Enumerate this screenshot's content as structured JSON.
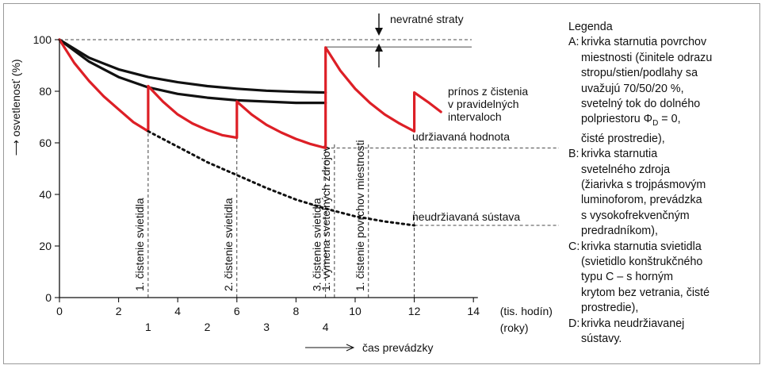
{
  "chart_data": {
    "type": "line",
    "ylabel": "osvetlenosť (%)",
    "xlabel": "čas prevádzky",
    "x_unit_hours": "(tis. hodín)",
    "x_unit_years": "(roky)",
    "ylim": [
      0,
      100
    ],
    "xlim": [
      0,
      14
    ],
    "y_ticks": [
      "0",
      "20",
      "40",
      "60",
      "80",
      "100"
    ],
    "x_ticks_hours": [
      "0",
      "2",
      "4",
      "6",
      "8",
      "10",
      "12",
      "14"
    ],
    "x_ticks_years": [
      {
        "x": 3,
        "label": "1"
      },
      {
        "x": 5,
        "label": "2"
      },
      {
        "x": 7,
        "label": "3"
      },
      {
        "x": 9,
        "label": "4"
      }
    ],
    "series": [
      {
        "color": "#111111",
        "x": [
          0,
          1,
          2,
          3,
          4,
          5,
          6,
          7,
          8,
          9
        ],
        "y": [
          100,
          93,
          88.5,
          85.5,
          83.5,
          82,
          81,
          80.2,
          79.8,
          79.5
        ]
      },
      {
        "color": "#111111",
        "x": [
          0,
          1,
          2,
          3,
          4,
          5,
          6,
          7,
          8,
          9
        ],
        "y": [
          100,
          91.5,
          85.5,
          81.5,
          79,
          77.5,
          76.5,
          76,
          75.5,
          75.5
        ]
      },
      {
        "color": "#dd1f26",
        "x": [
          0,
          0.5,
          1,
          1.5,
          2,
          2.5,
          3,
          3,
          3.5,
          4,
          4.5,
          5,
          5.5,
          6,
          6,
          6.5,
          7,
          7.5,
          8,
          8.5,
          9,
          9,
          9.5,
          10,
          10.5,
          11,
          11.5,
          12,
          12,
          12.5,
          12.9
        ],
        "y": [
          100,
          91,
          84,
          78,
          73,
          68,
          64.5,
          82,
          76,
          71,
          67.5,
          65,
          63,
          62,
          76,
          71,
          67,
          64,
          61.5,
          59.5,
          58,
          97,
          88,
          81,
          75.5,
          71,
          67.5,
          64.5,
          79.5,
          75.5,
          72
        ]
      },
      {
        "color": "#111111",
        "dashed": true,
        "x": [
          3,
          4,
          5,
          6,
          7,
          8,
          9,
          10,
          11,
          12
        ],
        "y": [
          64.5,
          58.5,
          52.5,
          47.5,
          42.5,
          38,
          34.5,
          31.5,
          29.5,
          28
        ]
      }
    ],
    "verticals": [
      {
        "x": 3,
        "label": "1. čistenie svietidla"
      },
      {
        "x": 6,
        "label": "2. čistenie svietidla"
      },
      {
        "x": 9,
        "label": "3. čistenie svietidla"
      },
      {
        "x": 9.3,
        "label": "1. výmena svetelných zdrojov"
      },
      {
        "x": 10.45,
        "label": "1. čistenie povrchov miestnosti"
      },
      {
        "x": 12,
        "label": ""
      }
    ],
    "annotations": {
      "nevratne": "nevratné straty",
      "prinos": "prínos z čistenia\nv pravidelných\nintervaloch",
      "udrziavana": "udržiavaná hodnota",
      "neudrziavana": "neudržiavaná sústava"
    },
    "legend": {
      "title": "Legenda",
      "entries": [
        {
          "key": "A:",
          "text": "krivka starnutia povrchov\nmiestnosti (činitele odrazu\nstropu/stien/podlahy sa\nuvažujú 70/50/20 %,\nsvetelný tok do dolného\npolpriestoru Φ",
          "sub": "D",
          "tail": " = 0,\nčisté prostredie),"
        },
        {
          "key": "B:",
          "text": "krivka starnutia\nsvetelného zdroja\n(žiarivka s trojpásmovým\nluminoforom, prevádzka\ns vysokofrekvenčným\npredradníkom),"
        },
        {
          "key": "C:",
          "text": "krivka starnutia svietidla\n(svietidlo konštrukčného\ntypu C – s horným\nkrytom bez vetrania, čisté\nprostredie),"
        },
        {
          "key": "D:",
          "text": "krivka neudržiavanej\nsústavy."
        }
      ]
    }
  }
}
